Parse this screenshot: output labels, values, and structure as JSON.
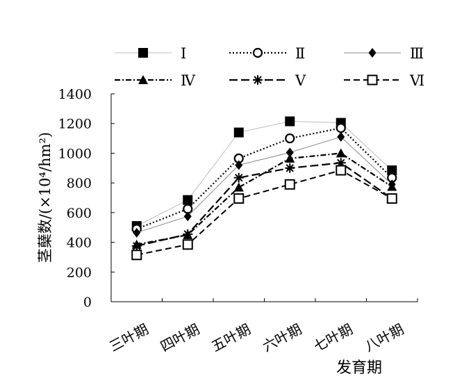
{
  "chart_data": {
    "type": "line",
    "ylabel": "茎蘖数/(×10⁴/hm²)",
    "xlabel": "发育期",
    "categories": [
      "三叶期",
      "四叶期",
      "五叶期",
      "六叶期",
      "七叶期",
      "八叶期"
    ],
    "ylim": [
      0,
      1400
    ],
    "yticks": [
      0,
      200,
      400,
      600,
      800,
      1000,
      1200,
      1400
    ],
    "grid": false,
    "legend_position": "top",
    "series": [
      {
        "name": "Ⅰ",
        "marker": "filled-square",
        "line": "solid-light-gray",
        "values": [
          510,
          685,
          1140,
          1215,
          1205,
          885
        ]
      },
      {
        "name": "Ⅱ",
        "marker": "open-circle",
        "line": "dotted",
        "values": [
          490,
          625,
          965,
          1100,
          1170,
          835
        ]
      },
      {
        "name": "Ⅲ",
        "marker": "filled-diamond",
        "line": "solid-gray",
        "values": [
          465,
          575,
          920,
          1005,
          1110,
          790
        ]
      },
      {
        "name": "Ⅳ",
        "marker": "filled-triangle",
        "line": "dash-dot",
        "values": [
          385,
          450,
          770,
          965,
          1000,
          775
        ]
      },
      {
        "name": "Ⅴ",
        "marker": "asterisk",
        "line": "long-dash",
        "values": [
          375,
          455,
          835,
          900,
          935,
          695
        ]
      },
      {
        "name": "Ⅵ",
        "marker": "open-square",
        "line": "dashed",
        "values": [
          315,
          385,
          695,
          790,
          885,
          695
        ]
      }
    ]
  }
}
